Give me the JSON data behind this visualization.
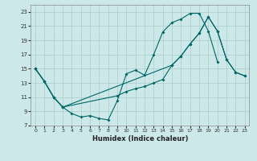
{
  "xlabel": "Humidex (Indice chaleur)",
  "background_color": "#cce8e8",
  "grid_color": "#aacccc",
  "line_color": "#006666",
  "xlim": [
    -0.5,
    23.5
  ],
  "ylim": [
    7,
    24
  ],
  "xticks": [
    0,
    1,
    2,
    3,
    4,
    5,
    6,
    7,
    8,
    9,
    10,
    11,
    12,
    13,
    14,
    15,
    16,
    17,
    18,
    19,
    20,
    21,
    22,
    23
  ],
  "yticks": [
    7,
    9,
    11,
    13,
    15,
    17,
    19,
    21,
    23
  ],
  "curves": [
    {
      "x": [
        0,
        1,
        2,
        3,
        4,
        5,
        6,
        7,
        8,
        9,
        10,
        11,
        12,
        13,
        14,
        15,
        16,
        17,
        18,
        19,
        20
      ],
      "y": [
        15,
        13.2,
        11.0,
        9.6,
        8.7,
        8.2,
        8.4,
        8.0,
        7.8,
        10.5,
        14.3,
        14.8,
        14.1,
        17.0,
        20.2,
        21.5,
        22.0,
        22.8,
        22.8,
        20.3,
        16.0
      ]
    },
    {
      "x": [
        0,
        1,
        2,
        3,
        15,
        16,
        17,
        18,
        19,
        20,
        21,
        22,
        23
      ],
      "y": [
        15,
        13.2,
        11.0,
        9.6,
        15.5,
        16.8,
        18.5,
        20.0,
        22.3,
        20.3,
        16.3,
        14.5,
        14.0
      ]
    },
    {
      "x": [
        0,
        1,
        2,
        3,
        9,
        10,
        11,
        12,
        13,
        14,
        15,
        16,
        17,
        18,
        19,
        20,
        21,
        22,
        23
      ],
      "y": [
        15,
        13.2,
        11.0,
        9.6,
        11.2,
        11.8,
        12.2,
        12.5,
        13.0,
        13.5,
        15.5,
        16.8,
        18.5,
        20.0,
        22.3,
        20.3,
        16.3,
        14.5,
        14.0
      ]
    }
  ]
}
